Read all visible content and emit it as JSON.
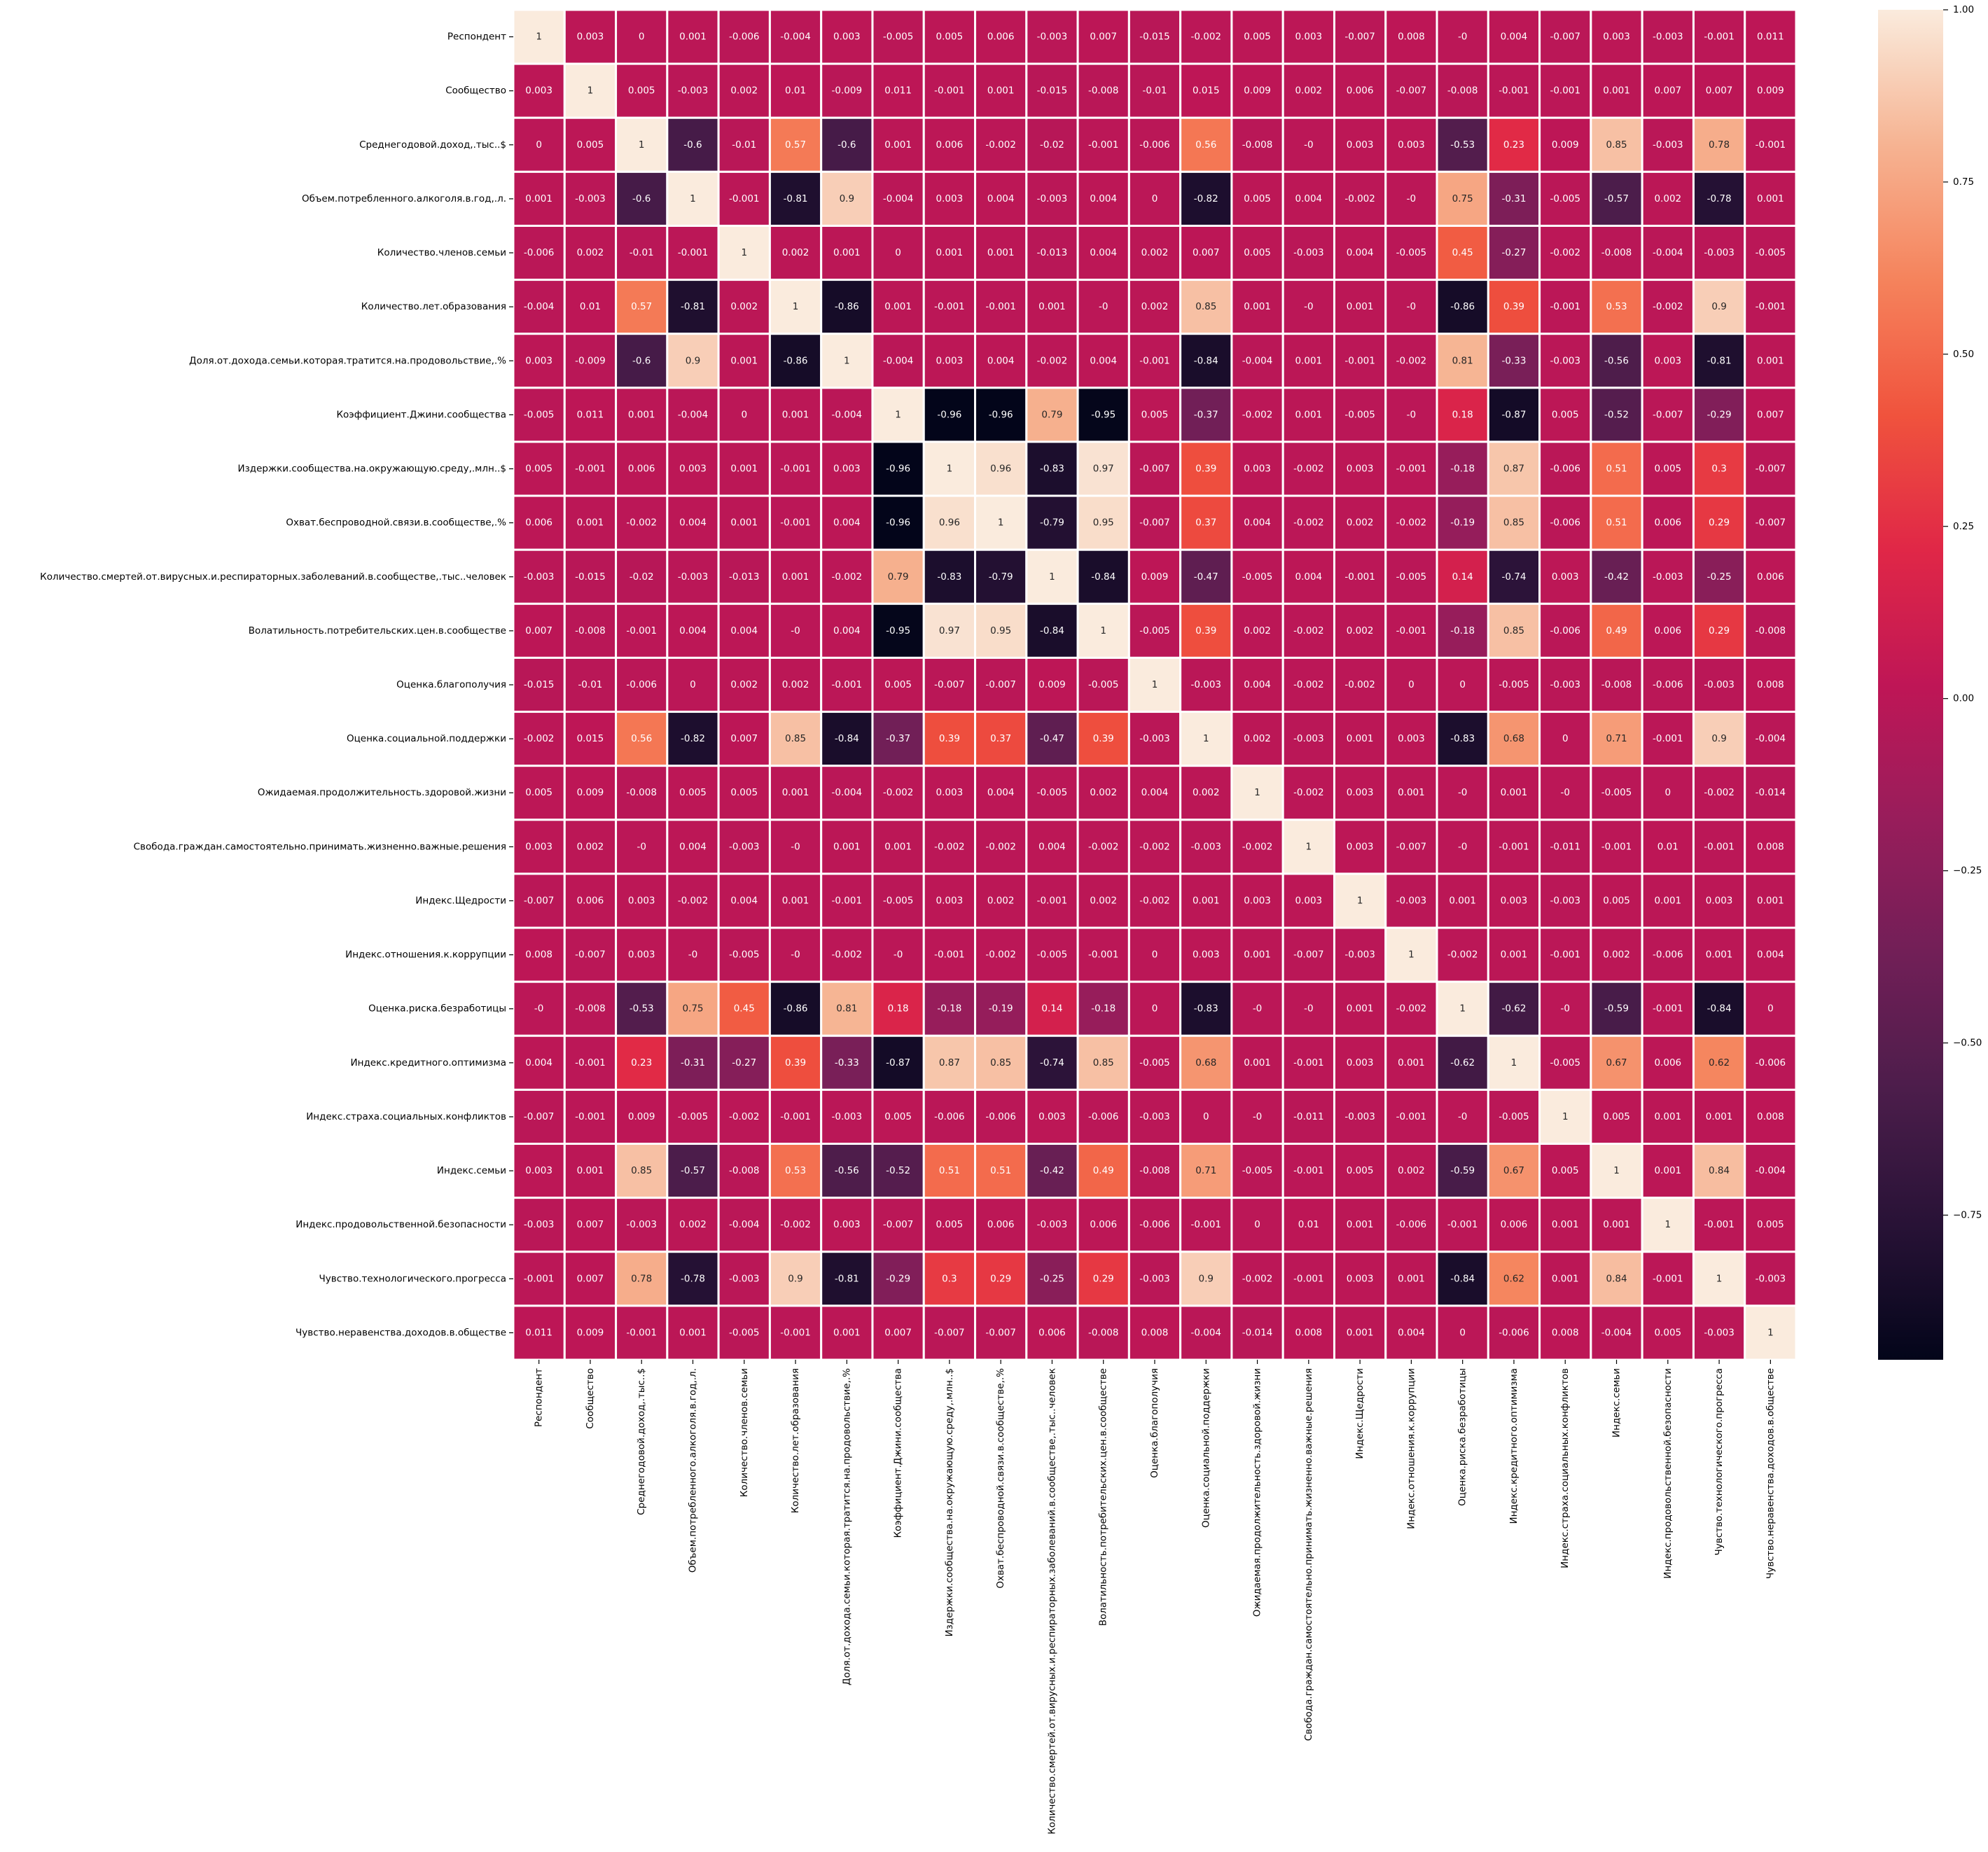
{
  "chart_data": {
    "type": "heatmap",
    "title": "",
    "xlabel": "",
    "ylabel": "",
    "labels": [
      "Респондент",
      "Сообщество",
      "Среднегодовой.доход,.тыс..$",
      "Объем.потребленного.алкоголя.в.год,.л.",
      "Количество.членов.семьи",
      "Количество.лет.образования",
      "Доля.от.дохода.семьи.которая.тратится.на.продовольствие,.%",
      "Коэффициент.Джини.сообщества",
      "Издержки.сообщества.на.окружающую.среду,.млн..$",
      "Охват.беспроводной.связи.в.сообществе,.%",
      "Количество.смертей.от.вирусных.и.респираторных.заболеваний.в.сообществе,.тыс..человек",
      "Волатильность.потребительских.цен.в.сообществе",
      "Оценка.благополучия",
      "Оценка.социальной.поддержки",
      "Ожидаемая.продолжительность.здоровой.жизни",
      "Свобода.граждан.самостоятельно.принимать.жизненно.важные.решения",
      "Индекс.Щедрости",
      "Индекс.отношения.к.коррупции",
      "Оценка.риска.безработицы",
      "Индекс.кредитного.оптимизма",
      "Индекс.страха.социальных.конфликтов",
      "Индекс.семьи",
      "Индекс.продовольственной.безопасности",
      "Чувство.технологического.прогресса",
      "Чувство.неравенства.доходов.в.обществе"
    ],
    "matrix": [
      [
        "1",
        "0.003",
        "0",
        "0.001",
        "-0.006",
        "-0.004",
        "0.003",
        "-0.005",
        "0.005",
        "0.006",
        "-0.003",
        "0.007",
        "-0.015",
        "-0.002",
        "0.005",
        "0.003",
        "-0.007",
        "0.008",
        "-0",
        "0.004",
        "-0.007",
        "0.003",
        "-0.003",
        "-0.001",
        "0.011"
      ],
      [
        "0.003",
        "1",
        "0.005",
        "-0.003",
        "0.002",
        "0.01",
        "-0.009",
        "0.011",
        "-0.001",
        "0.001",
        "-0.015",
        "-0.008",
        "-0.01",
        "0.015",
        "0.009",
        "0.002",
        "0.006",
        "-0.007",
        "-0.008",
        "-0.001",
        "-0.001",
        "0.001",
        "0.007",
        "0.007",
        "0.009"
      ],
      [
        "0",
        "0.005",
        "1",
        "-0.6",
        "-0.01",
        "0.57",
        "-0.6",
        "0.001",
        "0.006",
        "-0.002",
        "-0.02",
        "-0.001",
        "-0.006",
        "0.56",
        "-0.008",
        "-0",
        "0.003",
        "0.003",
        "-0.53",
        "0.23",
        "0.009",
        "0.85",
        "-0.003",
        "0.78",
        "-0.001"
      ],
      [
        "0.001",
        "-0.003",
        "-0.6",
        "1",
        "-0.001",
        "-0.81",
        "0.9",
        "-0.004",
        "0.003",
        "0.004",
        "-0.003",
        "0.004",
        "0",
        "-0.82",
        "0.005",
        "0.004",
        "-0.002",
        "-0",
        "0.75",
        "-0.31",
        "-0.005",
        "-0.57",
        "0.002",
        "-0.78",
        "0.001"
      ],
      [
        "-0.006",
        "0.002",
        "-0.01",
        "-0.001",
        "1",
        "0.002",
        "0.001",
        "0",
        "0.001",
        "0.001",
        "-0.013",
        "0.004",
        "0.002",
        "0.007",
        "0.005",
        "-0.003",
        "0.004",
        "-0.005",
        "0.45",
        "-0.27",
        "-0.002",
        "-0.008",
        "-0.004",
        "-0.003",
        "-0.005"
      ],
      [
        "-0.004",
        "0.01",
        "0.57",
        "-0.81",
        "0.002",
        "1",
        "-0.86",
        "0.001",
        "-0.001",
        "-0.001",
        "0.001",
        "-0",
        "0.002",
        "0.85",
        "0.001",
        "-0",
        "0.001",
        "-0",
        "-0.86",
        "0.39",
        "-0.001",
        "0.53",
        "-0.002",
        "0.9",
        "-0.001"
      ],
      [
        "0.003",
        "-0.009",
        "-0.6",
        "0.9",
        "0.001",
        "-0.86",
        "1",
        "-0.004",
        "0.003",
        "0.004",
        "-0.002",
        "0.004",
        "-0.001",
        "-0.84",
        "-0.004",
        "0.001",
        "-0.001",
        "-0.002",
        "0.81",
        "-0.33",
        "-0.003",
        "-0.56",
        "0.003",
        "-0.81",
        "0.001"
      ],
      [
        "-0.005",
        "0.011",
        "0.001",
        "-0.004",
        "0",
        "0.001",
        "-0.004",
        "1",
        "-0.96",
        "-0.96",
        "0.79",
        "-0.95",
        "0.005",
        "-0.37",
        "-0.002",
        "0.001",
        "-0.005",
        "-0",
        "0.18",
        "-0.87",
        "0.005",
        "-0.52",
        "-0.007",
        "-0.29",
        "0.007"
      ],
      [
        "0.005",
        "-0.001",
        "0.006",
        "0.003",
        "0.001",
        "-0.001",
        "0.003",
        "-0.96",
        "1",
        "0.96",
        "-0.83",
        "0.97",
        "-0.007",
        "0.39",
        "0.003",
        "-0.002",
        "0.003",
        "-0.001",
        "-0.18",
        "0.87",
        "-0.006",
        "0.51",
        "0.005",
        "0.3",
        "-0.007"
      ],
      [
        "0.006",
        "0.001",
        "-0.002",
        "0.004",
        "0.001",
        "-0.001",
        "0.004",
        "-0.96",
        "0.96",
        "1",
        "-0.79",
        "0.95",
        "-0.007",
        "0.37",
        "0.004",
        "-0.002",
        "0.002",
        "-0.002",
        "-0.19",
        "0.85",
        "-0.006",
        "0.51",
        "0.006",
        "0.29",
        "-0.007"
      ],
      [
        "-0.003",
        "-0.015",
        "-0.02",
        "-0.003",
        "-0.013",
        "0.001",
        "-0.002",
        "0.79",
        "-0.83",
        "-0.79",
        "1",
        "-0.84",
        "0.009",
        "-0.47",
        "-0.005",
        "0.004",
        "-0.001",
        "-0.005",
        "0.14",
        "-0.74",
        "0.003",
        "-0.42",
        "-0.003",
        "-0.25",
        "0.006"
      ],
      [
        "0.007",
        "-0.008",
        "-0.001",
        "0.004",
        "0.004",
        "-0",
        "0.004",
        "-0.95",
        "0.97",
        "0.95",
        "-0.84",
        "1",
        "-0.005",
        "0.39",
        "0.002",
        "-0.002",
        "0.002",
        "-0.001",
        "-0.18",
        "0.85",
        "-0.006",
        "0.49",
        "0.006",
        "0.29",
        "-0.008"
      ],
      [
        "-0.015",
        "-0.01",
        "-0.006",
        "0",
        "0.002",
        "0.002",
        "-0.001",
        "0.005",
        "-0.007",
        "-0.007",
        "0.009",
        "-0.005",
        "1",
        "-0.003",
        "0.004",
        "-0.002",
        "-0.002",
        "0",
        "0",
        "-0.005",
        "-0.003",
        "-0.008",
        "-0.006",
        "-0.003",
        "0.008"
      ],
      [
        "-0.002",
        "0.015",
        "0.56",
        "-0.82",
        "0.007",
        "0.85",
        "-0.84",
        "-0.37",
        "0.39",
        "0.37",
        "-0.47",
        "0.39",
        "-0.003",
        "1",
        "0.002",
        "-0.003",
        "0.001",
        "0.003",
        "-0.83",
        "0.68",
        "0",
        "0.71",
        "-0.001",
        "0.9",
        "-0.004"
      ],
      [
        "0.005",
        "0.009",
        "-0.008",
        "0.005",
        "0.005",
        "0.001",
        "-0.004",
        "-0.002",
        "0.003",
        "0.004",
        "-0.005",
        "0.002",
        "0.004",
        "0.002",
        "1",
        "-0.002",
        "0.003",
        "0.001",
        "-0",
        "0.001",
        "-0",
        "-0.005",
        "0",
        "-0.002",
        "-0.014"
      ],
      [
        "0.003",
        "0.002",
        "-0",
        "0.004",
        "-0.003",
        "-0",
        "0.001",
        "0.001",
        "-0.002",
        "-0.002",
        "0.004",
        "-0.002",
        "-0.002",
        "-0.003",
        "-0.002",
        "1",
        "0.003",
        "-0.007",
        "-0",
        "-0.001",
        "-0.011",
        "-0.001",
        "0.01",
        "-0.001",
        "0.008"
      ],
      [
        "-0.007",
        "0.006",
        "0.003",
        "-0.002",
        "0.004",
        "0.001",
        "-0.001",
        "-0.005",
        "0.003",
        "0.002",
        "-0.001",
        "0.002",
        "-0.002",
        "0.001",
        "0.003",
        "0.003",
        "1",
        "-0.003",
        "0.001",
        "0.003",
        "-0.003",
        "0.005",
        "0.001",
        "0.003",
        "0.001"
      ],
      [
        "0.008",
        "-0.007",
        "0.003",
        "-0",
        "-0.005",
        "-0",
        "-0.002",
        "-0",
        "-0.001",
        "-0.002",
        "-0.005",
        "-0.001",
        "0",
        "0.003",
        "0.001",
        "-0.007",
        "-0.003",
        "1",
        "-0.002",
        "0.001",
        "-0.001",
        "0.002",
        "-0.006",
        "0.001",
        "0.004"
      ],
      [
        "-0",
        "-0.008",
        "-0.53",
        "0.75",
        "0.45",
        "-0.86",
        "0.81",
        "0.18",
        "-0.18",
        "-0.19",
        "0.14",
        "-0.18",
        "0",
        "-0.83",
        "-0",
        "-0",
        "0.001",
        "-0.002",
        "1",
        "-0.62",
        "-0",
        "-0.59",
        "-0.001",
        "-0.84",
        "0"
      ],
      [
        "0.004",
        "-0.001",
        "0.23",
        "-0.31",
        "-0.27",
        "0.39",
        "-0.33",
        "-0.87",
        "0.87",
        "0.85",
        "-0.74",
        "0.85",
        "-0.005",
        "0.68",
        "0.001",
        "-0.001",
        "0.003",
        "0.001",
        "-0.62",
        "1",
        "-0.005",
        "0.67",
        "0.006",
        "0.62",
        "-0.006"
      ],
      [
        "-0.007",
        "-0.001",
        "0.009",
        "-0.005",
        "-0.002",
        "-0.001",
        "-0.003",
        "0.005",
        "-0.006",
        "-0.006",
        "0.003",
        "-0.006",
        "-0.003",
        "0",
        "-0",
        "-0.011",
        "-0.003",
        "-0.001",
        "-0",
        "-0.005",
        "1",
        "0.005",
        "0.001",
        "0.001",
        "0.008"
      ],
      [
        "0.003",
        "0.001",
        "0.85",
        "-0.57",
        "-0.008",
        "0.53",
        "-0.56",
        "-0.52",
        "0.51",
        "0.51",
        "-0.42",
        "0.49",
        "-0.008",
        "0.71",
        "-0.005",
        "-0.001",
        "0.005",
        "0.002",
        "-0.59",
        "0.67",
        "0.005",
        "1",
        "0.001",
        "0.84",
        "-0.004"
      ],
      [
        "-0.003",
        "0.007",
        "-0.003",
        "0.002",
        "-0.004",
        "-0.002",
        "0.003",
        "-0.007",
        "0.005",
        "0.006",
        "-0.003",
        "0.006",
        "-0.006",
        "-0.001",
        "0",
        "0.01",
        "0.001",
        "-0.006",
        "-0.001",
        "0.006",
        "0.001",
        "0.001",
        "1",
        "-0.001",
        "0.005"
      ],
      [
        "-0.001",
        "0.007",
        "0.78",
        "-0.78",
        "-0.003",
        "0.9",
        "-0.81",
        "-0.29",
        "0.3",
        "0.29",
        "-0.25",
        "0.29",
        "-0.003",
        "0.9",
        "-0.002",
        "-0.001",
        "0.003",
        "0.001",
        "-0.84",
        "0.62",
        "0.001",
        "0.84",
        "-0.001",
        "1",
        "-0.003"
      ],
      [
        "0.011",
        "0.009",
        "-0.001",
        "0.001",
        "-0.005",
        "-0.001",
        "0.001",
        "0.007",
        "-0.007",
        "-0.007",
        "0.006",
        "-0.008",
        "0.008",
        "-0.004",
        "-0.014",
        "0.008",
        "0.001",
        "0.004",
        "0",
        "-0.006",
        "0.008",
        "-0.004",
        "0.005",
        "-0.003",
        "1"
      ]
    ],
    "colorbar": {
      "vmin": -0.96,
      "vmax": 1.0,
      "ticks": [
        "1.00",
        "0.75",
        "0.50",
        "0.25",
        "0.00",
        "−0.25",
        "−0.50",
        "−0.75"
      ],
      "tick_values": [
        1.0,
        0.75,
        0.5,
        0.25,
        0.0,
        -0.25,
        -0.5,
        -0.75
      ],
      "colormap": "rocket"
    },
    "grid_line_color": "#ffffff"
  }
}
